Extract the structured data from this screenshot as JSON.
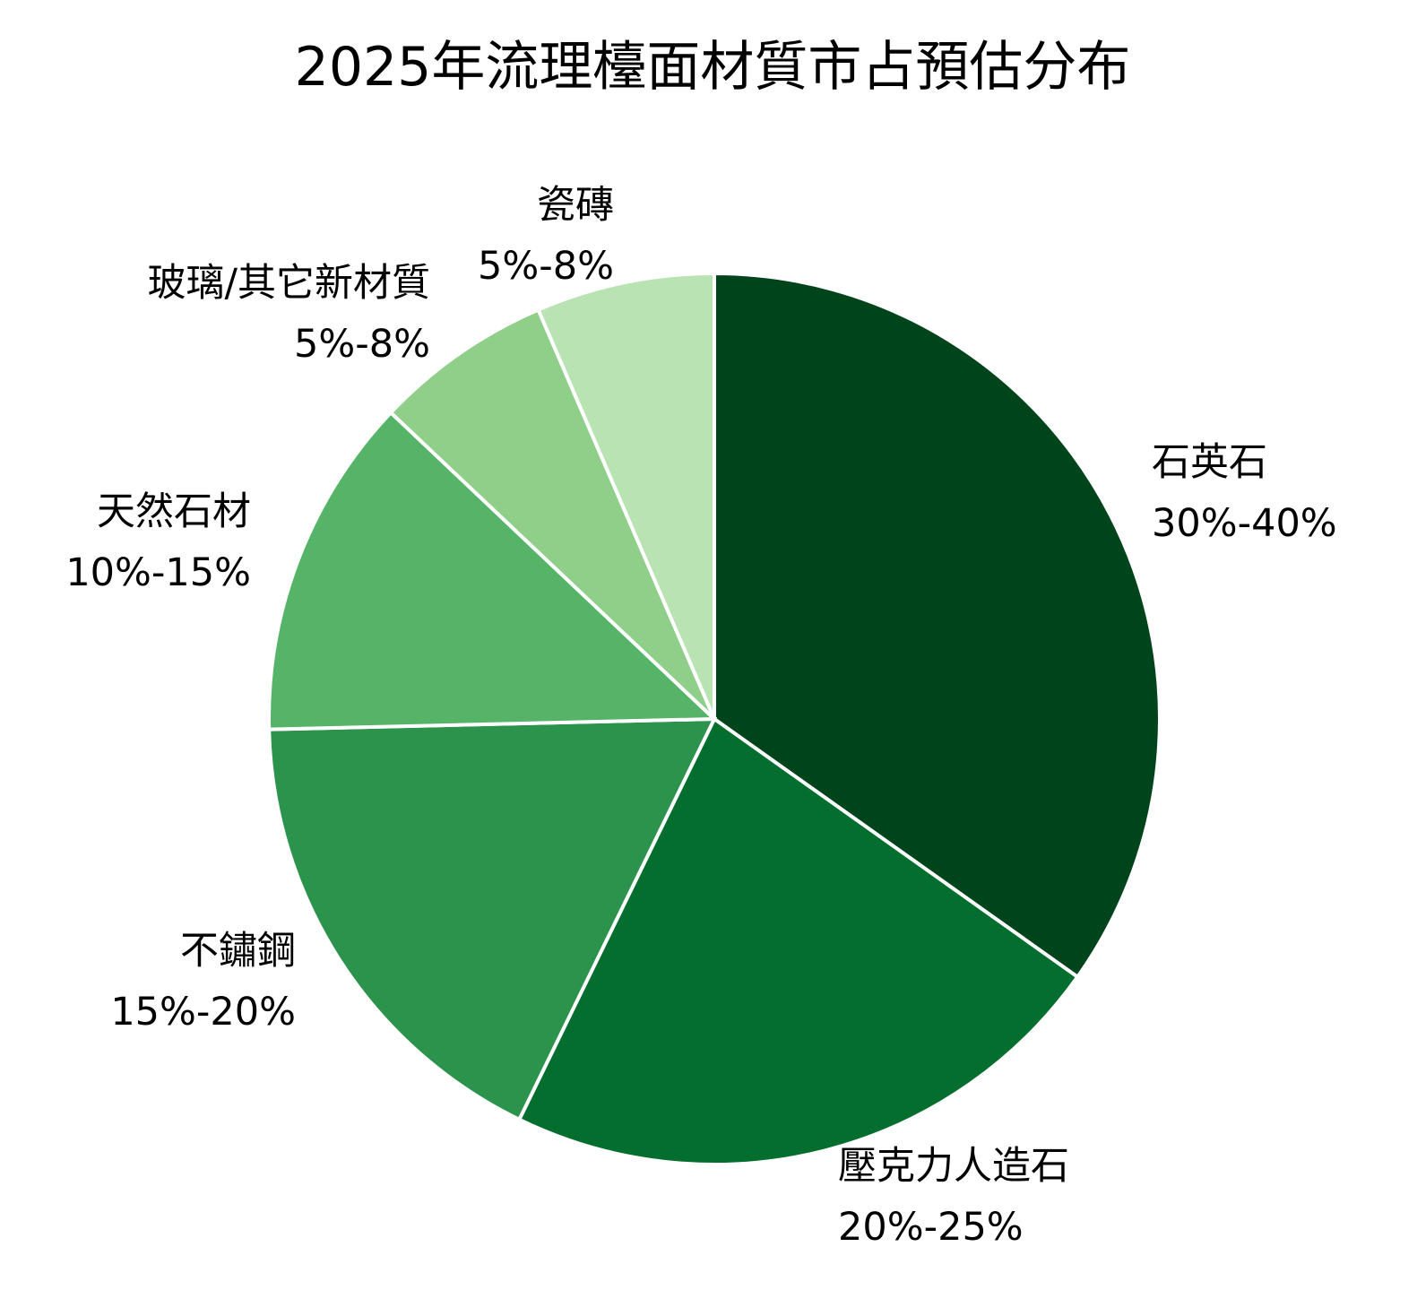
{
  "chart_data": {
    "type": "pie",
    "title": "2025年流理檯面材質市占預估分布",
    "start": "top",
    "direction": "clockwise",
    "slices": [
      {
        "name": "石英石",
        "range_label": "30%-40%",
        "value": 35,
        "color": "#00441b"
      },
      {
        "name": "壓克力人造石",
        "range_label": "20%-25%",
        "value": 22.5,
        "color": "#036e2d"
      },
      {
        "name": "不鏽鋼",
        "range_label": "15%-20%",
        "value": 17.5,
        "color": "#2c934c"
      },
      {
        "name": "天然石材",
        "range_label": "10%-15%",
        "value": 12.5,
        "color": "#56b468"
      },
      {
        "name": "玻璃/其它新材質",
        "range_label": "5%-8%",
        "value": 6.5,
        "color": "#8fcf89"
      },
      {
        "name": "瓷磚",
        "range_label": "5%-8%",
        "value": 6.5,
        "color": "#b9e3b3"
      }
    ],
    "slice_border_color": "#ffffff"
  }
}
